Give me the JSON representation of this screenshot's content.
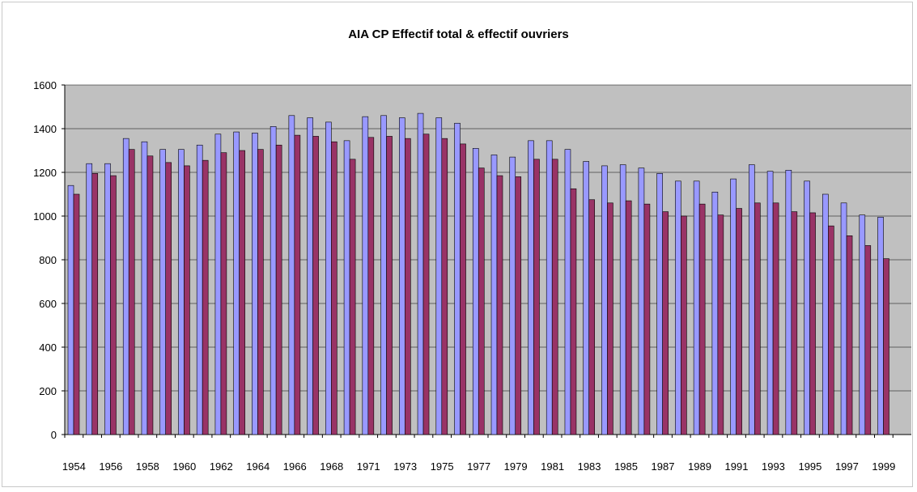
{
  "chart_data": {
    "type": "bar",
    "title": "AIA CP   Effectif total  & effectif ouvriers",
    "xlabel": "",
    "ylabel": "",
    "ylim": [
      0,
      1600
    ],
    "yticks": [
      0,
      200,
      400,
      600,
      800,
      1000,
      1200,
      1400,
      1600
    ],
    "grid": true,
    "legend": "none",
    "categories": [
      "1954",
      "1955",
      "1956",
      "1957",
      "1958",
      "1959",
      "1960",
      "1961",
      "1962",
      "1963",
      "1964",
      "1965",
      "1966",
      "1967",
      "1968",
      "1969",
      "1971",
      "1972",
      "1973",
      "1974",
      "1975",
      "1976",
      "1977",
      "1978",
      "1979",
      "1980",
      "1981",
      "1982",
      "1983",
      "1984",
      "1985",
      "1986",
      "1987",
      "1988",
      "1989",
      "1990",
      "1991",
      "1992",
      "1993",
      "1994",
      "1995",
      "1996",
      "1997",
      "1998",
      "1999",
      "2000"
    ],
    "xtick_labels": [
      "1954",
      "1956",
      "1958",
      "1960",
      "1962",
      "1964",
      "1966",
      "1968",
      "1971",
      "1973",
      "1975",
      "1977",
      "1979",
      "1981",
      "1983",
      "1985",
      "1987",
      "1989",
      "1991",
      "1993",
      "1995",
      "1997",
      "1999"
    ],
    "series": [
      {
        "values": [
          1140,
          1240,
          1240,
          1355,
          1340,
          1305,
          1305,
          1325,
          1375,
          1385,
          1380,
          1410,
          1460,
          1450,
          1430,
          1345,
          1455,
          1460,
          1450,
          1470,
          1450,
          1425,
          1310,
          1280,
          1270,
          1345,
          1345,
          1305,
          1250,
          1230,
          1235,
          1220,
          1195,
          1160,
          1160,
          1110,
          1170,
          1235,
          1205,
          1210,
          1160,
          1100,
          1060,
          1005,
          995,
          0
        ]
      },
      {
        "values": [
          1100,
          1195,
          1185,
          1305,
          1275,
          1245,
          1230,
          1255,
          1290,
          1300,
          1305,
          1325,
          1370,
          1365,
          1340,
          1260,
          1360,
          1365,
          1355,
          1375,
          1355,
          1330,
          1220,
          1185,
          1180,
          1260,
          1260,
          1125,
          1075,
          1060,
          1070,
          1055,
          1020,
          1000,
          1055,
          1005,
          1035,
          1060,
          1060,
          1020,
          1015,
          955,
          910,
          865,
          805,
          0
        ]
      }
    ],
    "colors": {
      "total": "#9999ff",
      "ouvriers": "#993366",
      "plot_bg": "#c0c0c0",
      "frame_bg": "#ffffff"
    }
  }
}
